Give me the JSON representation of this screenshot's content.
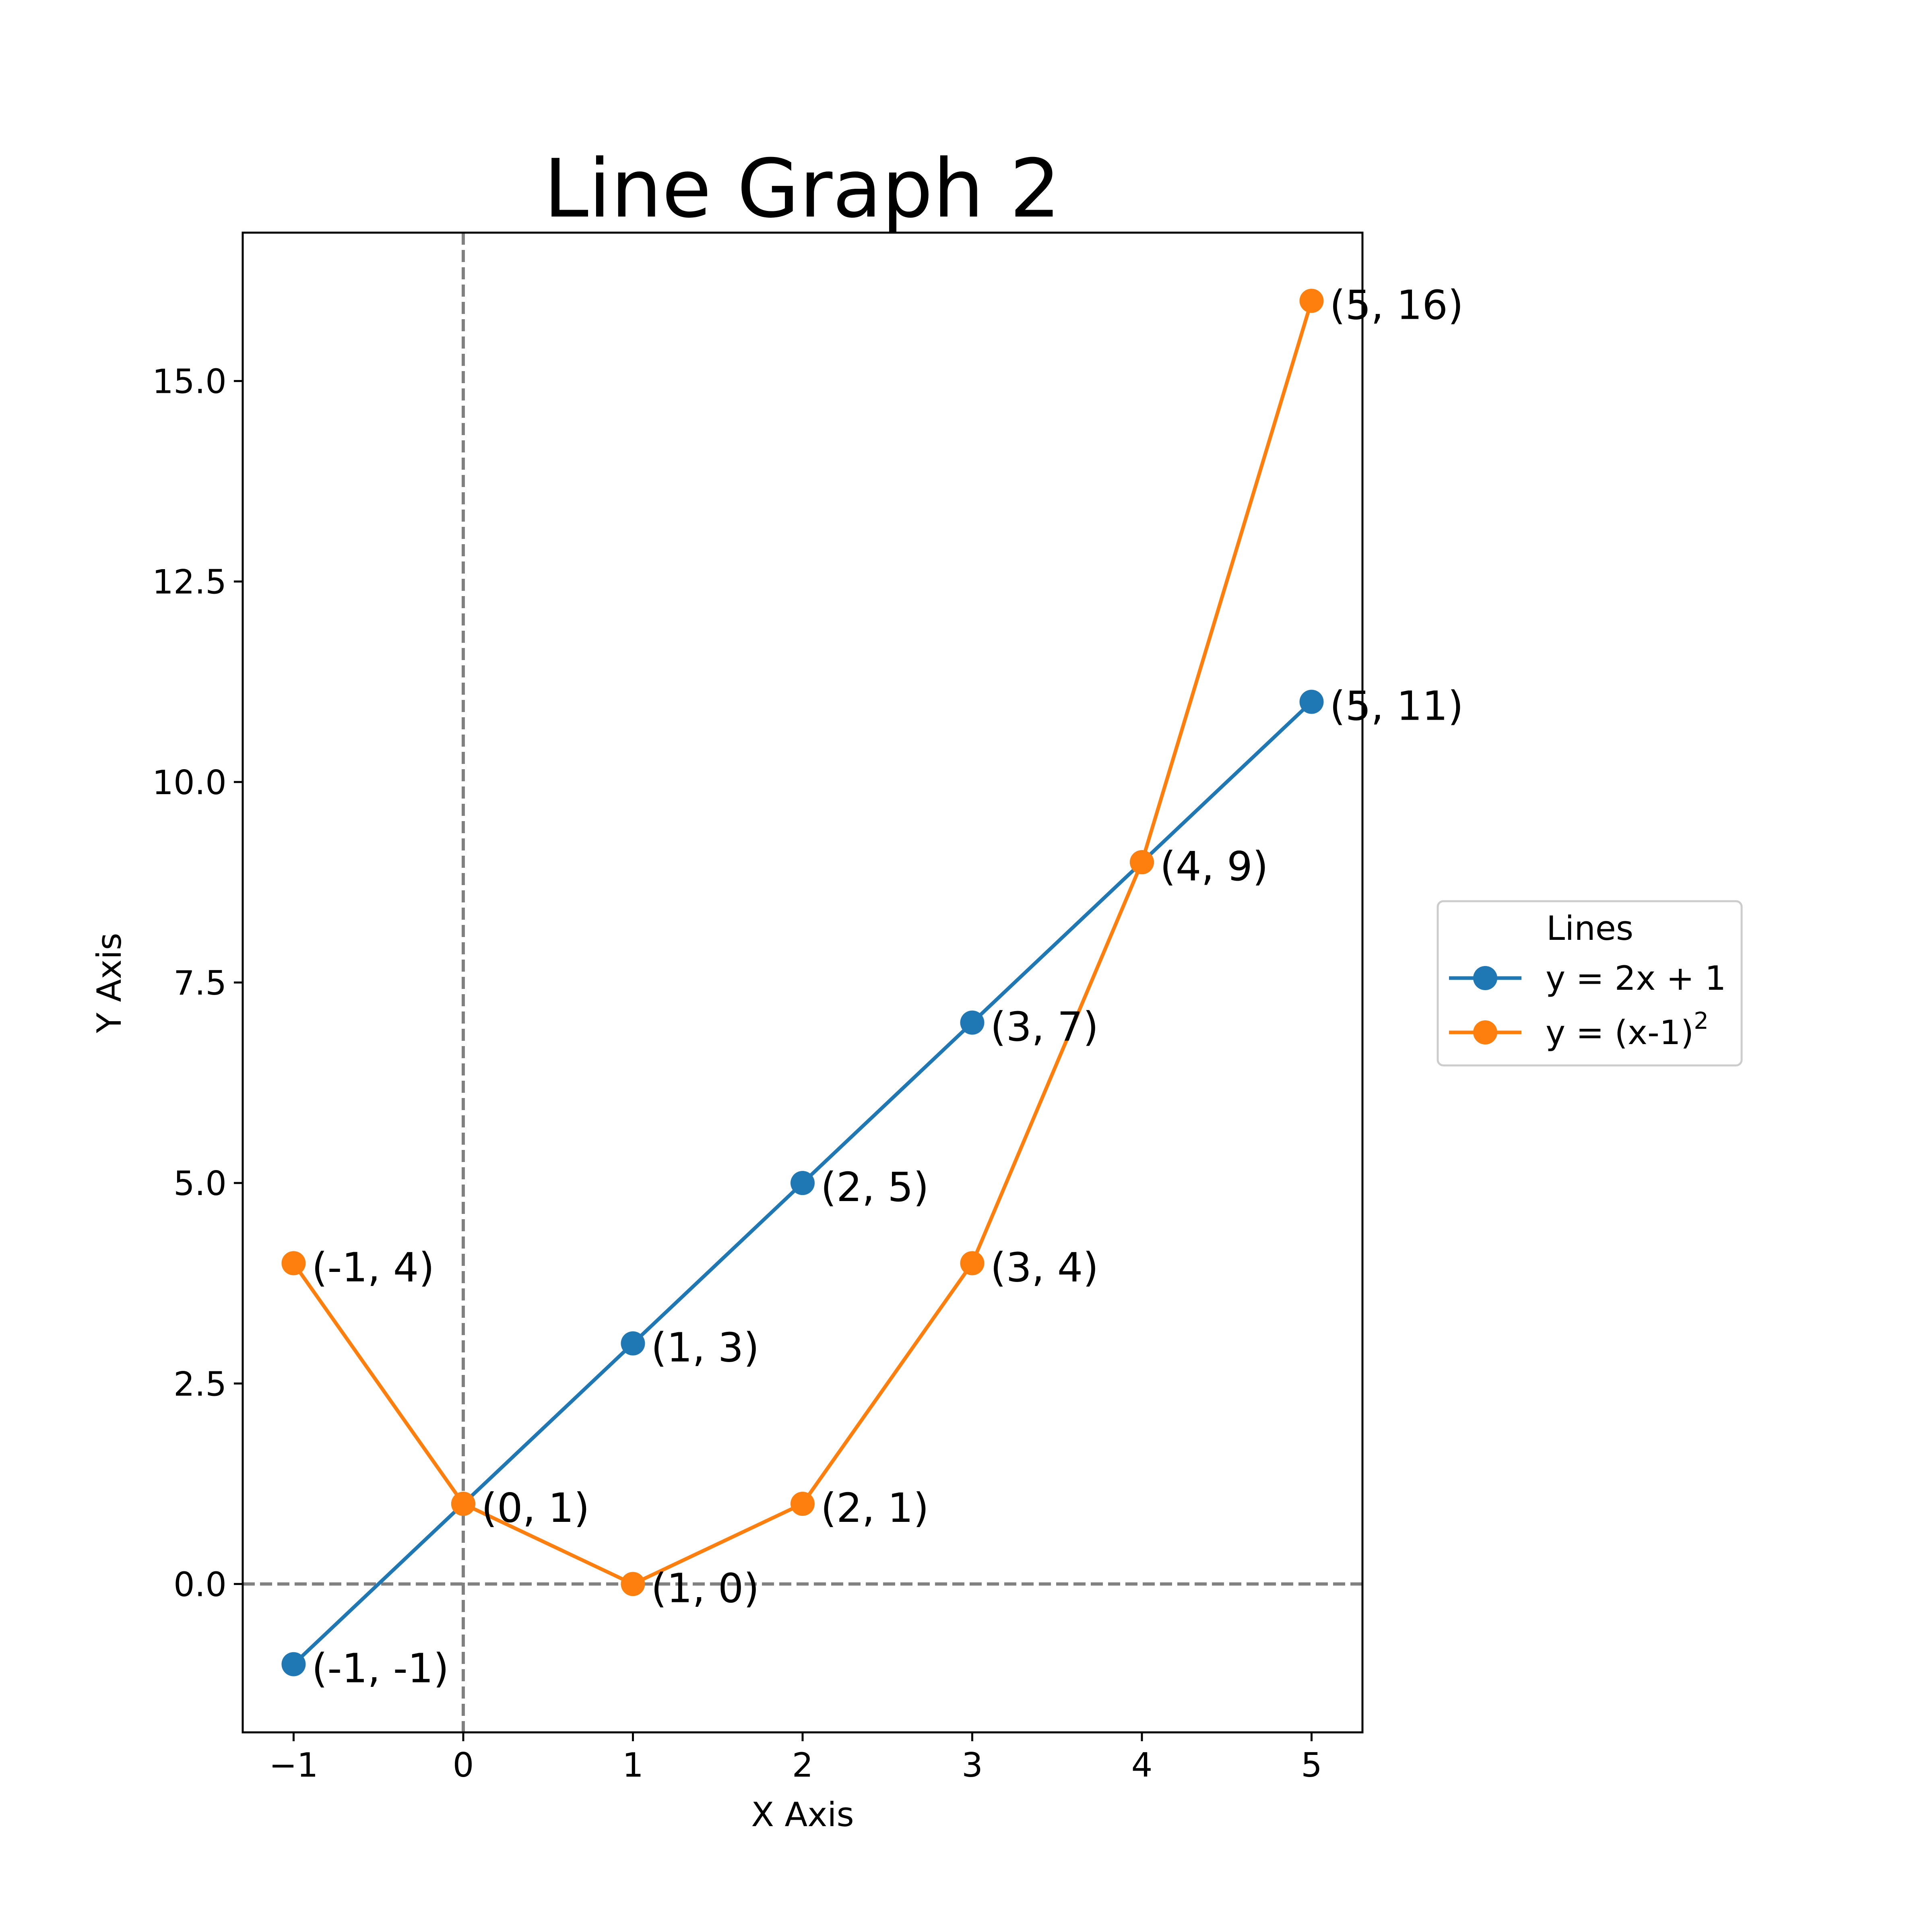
{
  "chart_data": {
    "type": "line",
    "title": "Line Graph 2",
    "xlabel": "X Axis",
    "ylabel": "Y Axis",
    "xlim": [
      -1.3,
      5.3
    ],
    "ylim": [
      -1.85,
      16.85
    ],
    "xticks": [
      {
        "value": -1,
        "label": "−1"
      },
      {
        "value": 0,
        "label": "0"
      },
      {
        "value": 1,
        "label": "1"
      },
      {
        "value": 2,
        "label": "2"
      },
      {
        "value": 3,
        "label": "3"
      },
      {
        "value": 4,
        "label": "4"
      },
      {
        "value": 5,
        "label": "5"
      }
    ],
    "yticks": [
      {
        "value": 0,
        "label": "0.0"
      },
      {
        "value": 2.5,
        "label": "2.5"
      },
      {
        "value": 5,
        "label": "5.0"
      },
      {
        "value": 7.5,
        "label": "7.5"
      },
      {
        "value": 10,
        "label": "10.0"
      },
      {
        "value": 12.5,
        "label": "12.5"
      },
      {
        "value": 15,
        "label": "15.0"
      }
    ],
    "reference_lines": [
      {
        "orientation": "vertical",
        "value": 0,
        "style": "dashed",
        "color": "#808080"
      },
      {
        "orientation": "horizontal",
        "value": 0,
        "style": "dashed",
        "color": "#808080"
      }
    ],
    "series": [
      {
        "name": "y = 2x + 1",
        "color": "#1f77b4",
        "x": [
          -1,
          0,
          1,
          2,
          3,
          4,
          5
        ],
        "y": [
          -1,
          1,
          3,
          5,
          7,
          9,
          11
        ],
        "labels": [
          "(-1, -1)",
          "(0, 1)",
          "(1, 3)",
          "(2, 5)",
          "(3, 7)",
          "(4, 9)",
          "(5, 11)"
        ]
      },
      {
        "name": "y = (x-1)",
        "name_superscript": "2",
        "color": "#ff7f0e",
        "x": [
          -1,
          0,
          1,
          2,
          3,
          4,
          5
        ],
        "y": [
          4,
          1,
          0,
          1,
          4,
          9,
          16
        ],
        "labels": [
          "(-1, 4)",
          "(0, 1)",
          "(1, 0)",
          "(2, 1)",
          "(3, 4)",
          "(4, 9)",
          "(5, 16)"
        ]
      }
    ],
    "legend": {
      "title": "Lines",
      "placement": "outside-right"
    },
    "grid": false
  }
}
